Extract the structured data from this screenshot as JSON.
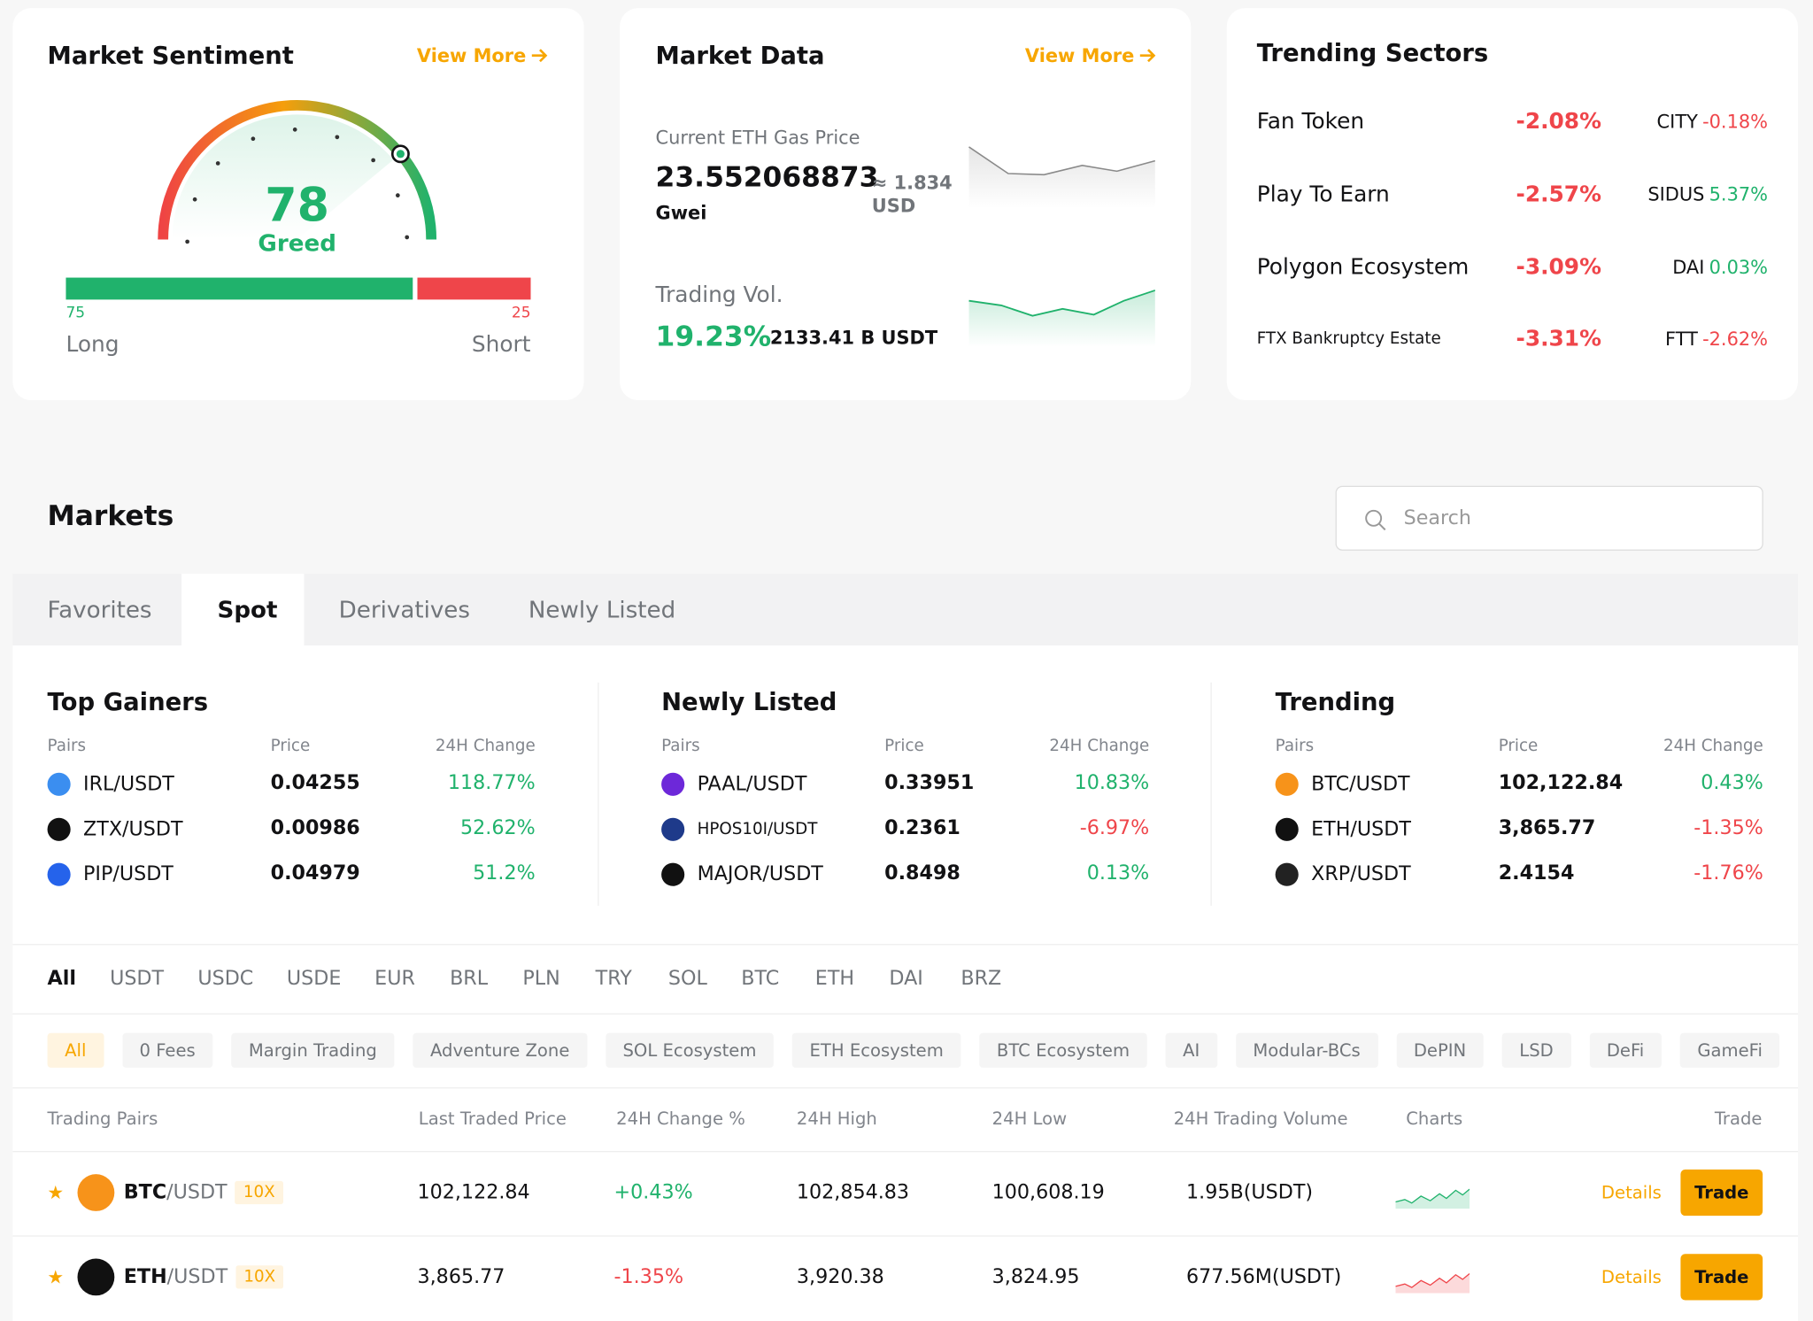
{
  "sentiment": {
    "title": "Market Sentiment",
    "view_more": "View More",
    "value": 78,
    "label": "Greed",
    "long": 75,
    "short": 25,
    "long_label": "Long",
    "short_label": "Short"
  },
  "market_data": {
    "title": "Market Data",
    "view_more": "View More",
    "gas_label": "Current ETH Gas Price",
    "gas_value": "23.552068873",
    "gas_unit": "Gwei",
    "gas_usd": "≈ 1.834",
    "gas_usd_unit": "USD",
    "vol_label": "Trading Vol.",
    "vol_change": "19.23%",
    "vol_value": "2133.41 B USDT"
  },
  "trending_sectors": {
    "title": "Trending Sectors",
    "rows": [
      {
        "sector": "Fan Token",
        "change": "-2.08%",
        "coin": "CITY",
        "coin_change": "-0.18%"
      },
      {
        "sector": "Play To Earn",
        "change": "-2.57%",
        "coin": "SIDUS",
        "coin_change": "5.37%"
      },
      {
        "sector": "Polygon Ecosystem",
        "change": "-3.09%",
        "coin": "DAI",
        "coin_change": "0.03%"
      },
      {
        "sector": "FTX Bankruptcy Estate",
        "change": "-3.31%",
        "coin": "FTT",
        "coin_change": "-2.62%"
      }
    ]
  },
  "markets": {
    "title": "Markets",
    "search_placeholder": "Search",
    "tabs": [
      "Favorites",
      "Spot",
      "Derivatives",
      "Newly Listed"
    ],
    "panels": [
      {
        "title": "Top Gainers",
        "headers": [
          "Pairs",
          "Price",
          "24H Change"
        ],
        "rows": [
          {
            "pair": "IRL/USDT",
            "price": "0.04255",
            "change": "118.77%"
          },
          {
            "pair": "ZTX/USDT",
            "price": "0.00986",
            "change": "52.62%"
          },
          {
            "pair": "PIP/USDT",
            "price": "0.04979",
            "change": "51.2%"
          }
        ]
      },
      {
        "title": "Newly Listed",
        "headers": [
          "Pairs",
          "Price",
          "24H Change"
        ],
        "rows": [
          {
            "pair": "PAAL/USDT",
            "price": "0.33951",
            "change": "10.83%"
          },
          {
            "pair": "HPOS10I/USDT",
            "price": "0.2361",
            "change": "-6.97%"
          },
          {
            "pair": "MAJOR/USDT",
            "price": "0.8498",
            "change": "0.13%"
          }
        ]
      },
      {
        "title": "Trending",
        "headers": [
          "Pairs",
          "Price",
          "24H Change"
        ],
        "rows": [
          {
            "pair": "BTC/USDT",
            "price": "102,122.84",
            "change": "0.43%"
          },
          {
            "pair": "ETH/USDT",
            "price": "3,865.77",
            "change": "-1.35%"
          },
          {
            "pair": "XRP/USDT",
            "price": "2.4154",
            "change": "-1.76%"
          }
        ]
      }
    ],
    "quote_tabs": [
      "All",
      "USDT",
      "USDC",
      "USDE",
      "EUR",
      "BRL",
      "PLN",
      "TRY",
      "SOL",
      "BTC",
      "ETH",
      "DAI",
      "BRZ"
    ],
    "chips": [
      "All",
      "0 Fees",
      "Margin Trading",
      "Adventure Zone",
      "SOL Ecosystem",
      "ETH Ecosystem",
      "BTC Ecosystem",
      "AI",
      "Modular-BCs",
      "DePIN",
      "LSD",
      "DeFi",
      "GameFi"
    ],
    "columns": [
      "Trading Pairs",
      "Last Traded Price",
      "24H Change %",
      "24H High",
      "24H Low",
      "24H Trading Volume",
      "Charts",
      "Trade"
    ],
    "rows": [
      {
        "base": "BTC",
        "quote": "/USDT",
        "leverage": "10X",
        "price": "102,122.84",
        "change": "+0.43%",
        "high": "102,854.83",
        "low": "100,608.19",
        "volume": "1.95B(USDT)",
        "details": "Details",
        "trade": "Trade"
      },
      {
        "base": "ETH",
        "quote": "/USDT",
        "leverage": "10X",
        "price": "3,865.77",
        "change": "-1.35%",
        "high": "3,920.38",
        "low": "3,824.95",
        "volume": "677.56M(USDT)",
        "details": "Details",
        "trade": "Trade"
      }
    ]
  }
}
